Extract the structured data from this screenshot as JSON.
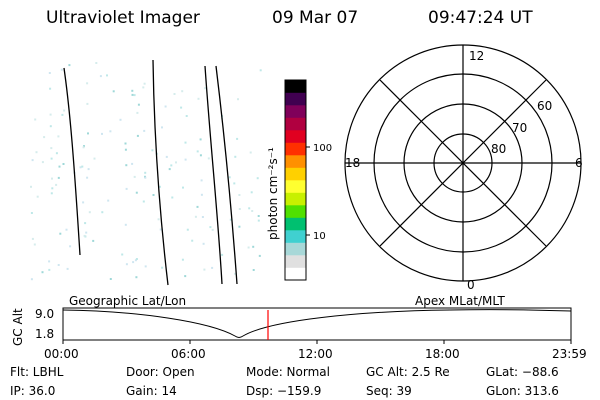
{
  "header": {
    "instrument": "Ultraviolet Imager",
    "date": "09 Mar 07",
    "time": "09:47:24 UT"
  },
  "colorbar": {
    "label": "photon cm⁻²s⁻¹",
    "tick_labels": [
      "100",
      "10"
    ],
    "colors": [
      "#ffffff",
      "#e0e0e0",
      "#a8d8d8",
      "#40d0d0",
      "#00c070",
      "#50e000",
      "#c8f000",
      "#ffff30",
      "#ffd000",
      "#ff9000",
      "#ff3000",
      "#e00020",
      "#b00040",
      "#80005a",
      "#400050",
      "#000000"
    ]
  },
  "polar": {
    "mlt_labels": [
      "12",
      "18",
      "6",
      "0"
    ],
    "lat_labels": [
      "60",
      "70",
      "80"
    ]
  },
  "timeline": {
    "left_label": "Geographic Lat/Lon",
    "right_label": "Apex MLat/MLT",
    "axis_title": "GC Alt",
    "y_labels": [
      "9.0",
      "1.8"
    ],
    "x_labels": [
      "00:00",
      "06:00",
      "12:00",
      "18:00",
      "23:59"
    ],
    "current_marker_color": "#ff0000"
  },
  "footer": {
    "row1": [
      "Flt: LBHL",
      "Door: Open",
      "Mode: Normal",
      "GC Alt: 2.5 Re",
      "GLat: −88.6"
    ],
    "row2": [
      "IP: 36.0",
      "Gain: 14",
      "Dsp: −159.9",
      "Seq: 39",
      "GLon: 313.6"
    ]
  }
}
